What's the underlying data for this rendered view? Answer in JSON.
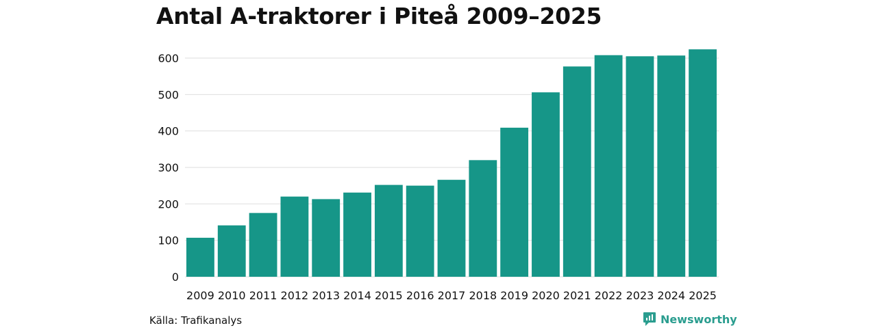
{
  "title": "Antal A-traktorer i Piteå 2009–2025",
  "source": "Källa: Trafikanalys",
  "brand": {
    "name": "Newsworthy",
    "icon": "newsworthy-logo-icon"
  },
  "colors": {
    "bar": "#169688",
    "grid": "#dedede",
    "brand": "#2a9d8f"
  },
  "chart_data": {
    "type": "bar",
    "title": "Antal A-traktorer i Piteå 2009–2025",
    "xlabel": "",
    "ylabel": "",
    "categories": [
      "2009",
      "2010",
      "2011",
      "2012",
      "2013",
      "2014",
      "2015",
      "2016",
      "2017",
      "2018",
      "2019",
      "2020",
      "2021",
      "2022",
      "2023",
      "2024",
      "2025"
    ],
    "values": [
      107,
      141,
      175,
      220,
      213,
      231,
      252,
      250,
      266,
      320,
      409,
      506,
      577,
      608,
      605,
      607,
      624
    ],
    "ylim": [
      0,
      650
    ],
    "yticks": [
      0,
      100,
      200,
      300,
      400,
      500,
      600
    ],
    "grid": true,
    "legend": "none"
  }
}
